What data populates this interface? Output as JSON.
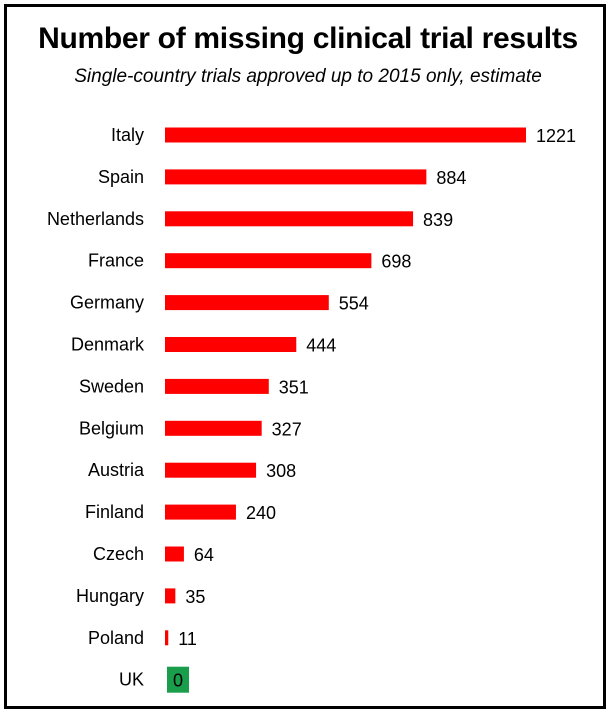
{
  "chart_data": {
    "type": "bar",
    "orientation": "horizontal",
    "title": "Number of missing clinical trial results",
    "subtitle": "Single-country trials approved up to 2015 only, estimate",
    "categories": [
      "Italy",
      "Spain",
      "Netherlands",
      "France",
      "Germany",
      "Denmark",
      "Sweden",
      "Belgium",
      "Austria",
      "Finland",
      "Czech",
      "Hungary",
      "Poland",
      "UK"
    ],
    "values": [
      1221,
      884,
      839,
      698,
      554,
      444,
      351,
      327,
      308,
      240,
      64,
      35,
      11,
      0
    ],
    "xlim": [
      0,
      1221
    ],
    "grid": false,
    "legend": "none",
    "colors": {
      "bar": "#ff0000",
      "highlight": "#1a9e4b"
    },
    "highlight_category": "UK"
  }
}
